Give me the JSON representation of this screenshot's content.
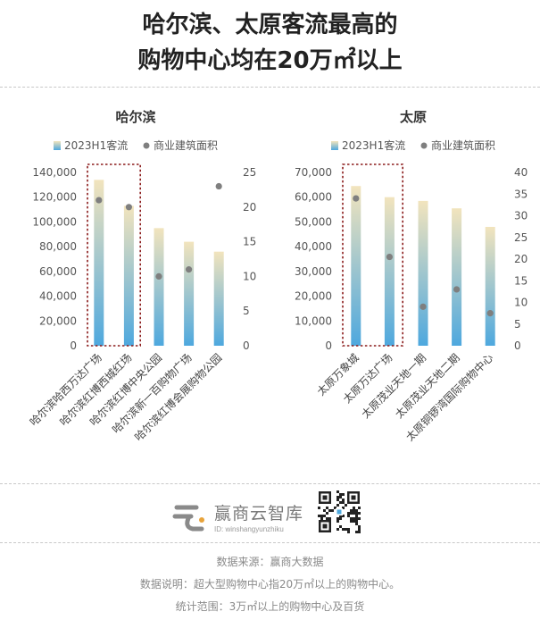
{
  "title_line1": "哈尔滨、太原客流最高的",
  "title_line2": "购物中心均在20万㎡以上",
  "legend": {
    "series1": "2023H1客流",
    "series2": "商业建筑面积"
  },
  "colors": {
    "bar_top": "#f2e4bd",
    "bar_bottom": "#4ea8de",
    "dot": "#7f7f7f",
    "highlight_border": "#8b1c1c"
  },
  "chart_data": [
    {
      "type": "bar",
      "title": "哈尔滨",
      "categories": [
        "哈尔滨哈西万达广场",
        "哈尔滨红博西城红场",
        "哈尔滨红博中央公园",
        "哈尔滨新一百购物广场",
        "哈尔滨红博会展购物公园"
      ],
      "series": [
        {
          "name": "2023H1客流",
          "type": "bar",
          "axis": "left",
          "values": [
            134000,
            113000,
            95000,
            84000,
            76000
          ]
        },
        {
          "name": "商业建筑面积",
          "type": "scatter",
          "axis": "right",
          "values": [
            21,
            20,
            10,
            11,
            23
          ]
        }
      ],
      "left_axis": {
        "min": 0,
        "max": 140000,
        "ticks": [
          "0",
          "20,000",
          "40,000",
          "60,000",
          "80,000",
          "100,000",
          "120,000",
          "140,000"
        ]
      },
      "right_axis": {
        "min": 0,
        "max": 25,
        "ticks": [
          "0",
          "5",
          "10",
          "15",
          "20",
          "25"
        ]
      },
      "highlight": [
        0,
        1
      ]
    },
    {
      "type": "bar",
      "title": "太原",
      "categories": [
        "太原万象城",
        "太原万达广场",
        "太原茂业天地一期",
        "太原茂业天地二期",
        "太原铜锣湾国际购物中心"
      ],
      "series": [
        {
          "name": "2023H1客流",
          "type": "bar",
          "axis": "left",
          "values": [
            64500,
            60000,
            58500,
            55500,
            48000
          ]
        },
        {
          "name": "商业建筑面积",
          "type": "scatter",
          "axis": "right",
          "values": [
            34,
            20.5,
            9,
            13,
            7.5
          ]
        }
      ],
      "left_axis": {
        "min": 0,
        "max": 70000,
        "ticks": [
          "0",
          "10,000",
          "20,000",
          "30,000",
          "40,000",
          "50,000",
          "60,000",
          "70,000"
        ]
      },
      "right_axis": {
        "min": 0,
        "max": 40,
        "ticks": [
          "0",
          "5",
          "10",
          "15",
          "20",
          "25",
          "30",
          "35",
          "40"
        ]
      },
      "highlight": [
        0,
        1
      ]
    }
  ],
  "brand": {
    "name": "赢商云智库",
    "id": "ID: winshangyunzhiku",
    "logo_icon": "winshang-logo-icon",
    "qr_icon": "qr-code-icon"
  },
  "footnotes": {
    "source": "数据来源：赢商大数据",
    "note": "数据说明：超大型购物中心指20万㎡以上的购物中心。",
    "scope": "统计范围：3万㎡以上的购物中心及百货"
  }
}
